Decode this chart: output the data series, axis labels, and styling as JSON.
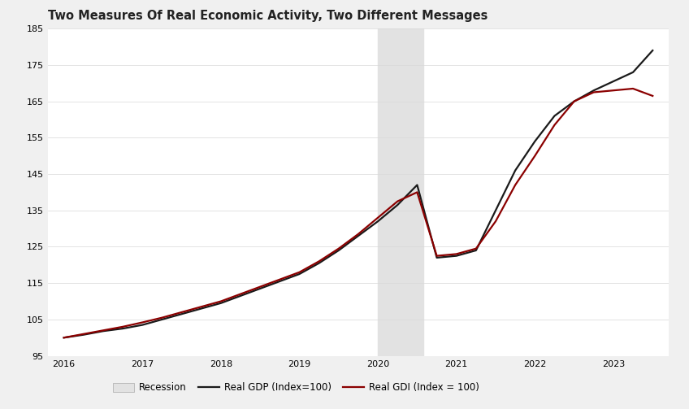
{
  "title": "Two Measures Of Real Economic Activity, Two Different Messages",
  "title_fontsize": 10.5,
  "background_color": "#f0f0f0",
  "plot_background_color": "#ffffff",
  "recession_start": 2020.0,
  "recession_end": 2020.58,
  "recession_color": "#e2e2e2",
  "gdp_color": "#1a1a1a",
  "gdi_color": "#8b0000",
  "line_width": 1.6,
  "ylim": [
    95,
    185
  ],
  "yticks": [
    95,
    105,
    115,
    125,
    135,
    145,
    155,
    165,
    175,
    185
  ],
  "xlim_start": 2015.8,
  "xlim_end": 2023.7,
  "gdp_x": [
    2016.0,
    2016.25,
    2016.5,
    2016.75,
    2017.0,
    2017.25,
    2017.5,
    2017.75,
    2018.0,
    2018.25,
    2018.5,
    2018.75,
    2019.0,
    2019.25,
    2019.5,
    2019.75,
    2020.0,
    2020.25,
    2020.5,
    2020.75,
    2021.0,
    2021.25,
    2021.5,
    2021.75,
    2022.0,
    2022.25,
    2022.5,
    2022.75,
    2023.0,
    2023.25,
    2023.5
  ],
  "gdp_y": [
    100.0,
    100.8,
    101.8,
    102.5,
    103.5,
    105.0,
    106.5,
    108.0,
    109.5,
    111.5,
    113.5,
    115.5,
    117.5,
    120.5,
    124.0,
    128.0,
    132.0,
    136.5,
    142.0,
    122.0,
    122.5,
    124.0,
    135.0,
    146.0,
    154.0,
    161.0,
    165.0,
    168.0,
    170.5,
    173.0,
    179.0
  ],
  "gdi_x": [
    2016.0,
    2016.25,
    2016.5,
    2016.75,
    2017.0,
    2017.25,
    2017.5,
    2017.75,
    2018.0,
    2018.25,
    2018.5,
    2018.75,
    2019.0,
    2019.25,
    2019.5,
    2019.75,
    2020.0,
    2020.25,
    2020.5,
    2020.75,
    2021.0,
    2021.25,
    2021.5,
    2021.75,
    2022.0,
    2022.25,
    2022.5,
    2022.75,
    2023.0,
    2023.25,
    2023.5
  ],
  "gdi_y": [
    100.0,
    101.0,
    102.0,
    103.0,
    104.2,
    105.5,
    107.0,
    108.5,
    110.0,
    112.0,
    114.0,
    116.0,
    118.0,
    121.0,
    124.5,
    128.5,
    133.0,
    137.5,
    140.0,
    122.5,
    123.0,
    124.5,
    132.0,
    142.0,
    150.0,
    158.5,
    165.0,
    167.5,
    168.0,
    168.5,
    166.5
  ],
  "legend_items": [
    "Recession",
    "Real GDP (Index=100)",
    "Real GDI (Index = 100)"
  ],
  "xtick_labels": [
    "2016",
    "2017",
    "2018",
    "2019",
    "2020",
    "2021",
    "2022",
    "2023"
  ],
  "xtick_positions": [
    2016,
    2017,
    2018,
    2019,
    2020,
    2021,
    2022,
    2023
  ]
}
